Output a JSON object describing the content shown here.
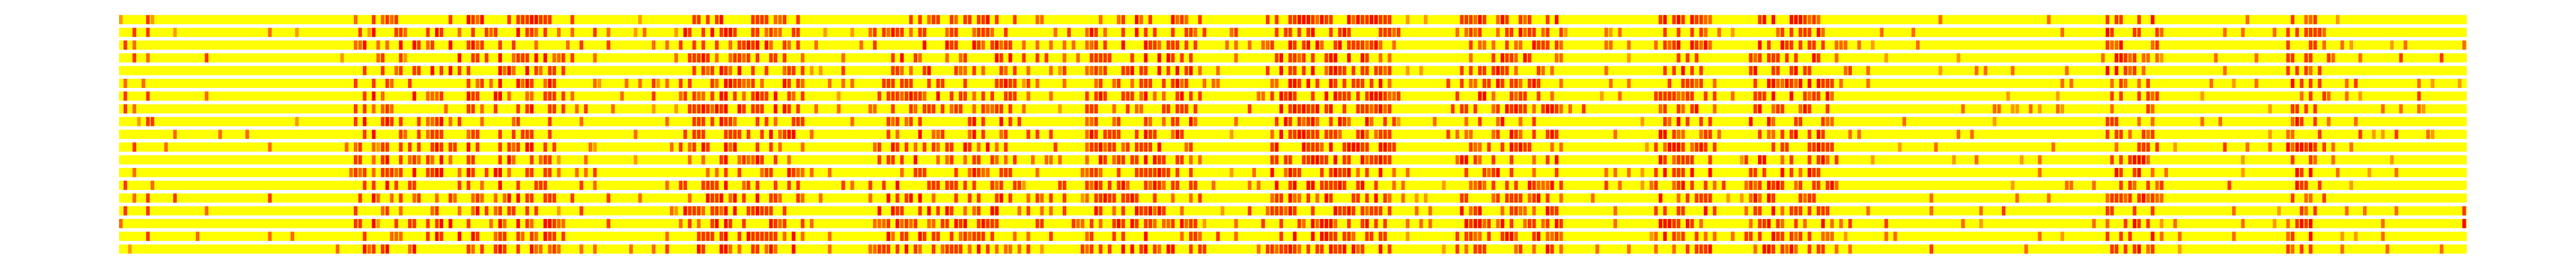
{
  "chart_data": {
    "type": "heatmap",
    "title": "",
    "xlabel": "",
    "ylabel": "",
    "axes_visible": false,
    "legend": "none",
    "grid": false,
    "row_count": 19,
    "column_count": 520,
    "value_range": [
      0,
      1
    ],
    "colormap": {
      "name": "autumn_r",
      "low": "#ffff00",
      "high": "#ff0000",
      "stops": [
        "#ffff00",
        "#ffcc00",
        "#ff9900",
        "#ff6600",
        "#ff3300",
        "#ff0000"
      ]
    },
    "background_color": "#ffffff",
    "row_gap_color": "#ffffff",
    "column_profile": [
      0.05,
      0.4,
      0.05,
      0.3,
      0.05,
      0.02,
      0.35,
      0.1,
      0.02,
      0.02,
      0.03,
      0.02,
      0.25,
      0.02,
      0.02,
      0.03,
      0.02,
      0.02,
      0.02,
      0.3,
      0.02,
      0.02,
      0.02,
      0.02,
      0.02,
      0.02,
      0.02,
      0.03,
      0.02,
      0.02,
      0.02,
      0.02,
      0.02,
      0.3,
      0.02,
      0.02,
      0.02,
      0.02,
      0.02,
      0.02,
      0.02,
      0.02,
      0.02,
      0.02,
      0.02,
      0.02,
      0.02,
      0.02,
      0.02,
      0.02,
      0.02,
      0.02,
      0.55,
      0.45,
      0.6,
      0.2,
      0.5,
      0.15,
      0.45,
      0.55,
      0.25,
      0.5,
      0.55,
      0.1,
      0.45,
      0.6,
      0.55,
      0.05,
      0.45,
      0.5,
      0.55,
      0.6,
      0.05,
      0.5,
      0.25,
      0.6,
      0.1,
      0.65,
      0.55,
      0.5,
      0.45,
      0.4,
      0.25,
      0.55,
      0.7,
      0.3,
      0.6,
      0.5,
      0.65,
      0.45,
      0.55,
      0.6,
      0.5,
      0.35,
      0.55,
      0.6,
      0.45,
      0.2,
      0.45,
      0.15,
      0.3,
      0.1,
      0.25,
      0.2,
      0.1,
      0.25,
      0.15,
      0.05,
      0.2,
      0.05,
      0.15,
      0.1,
      0.05,
      0.15,
      0.1,
      0.15,
      0.25,
      0.05,
      0.2,
      0.1,
      0.05,
      0.15,
      0.1,
      0.2,
      0.3,
      0.55,
      0.6,
      0.5,
      0.55,
      0.65,
      0.55,
      0.6,
      0.55,
      0.65,
      0.7,
      0.55,
      0.6,
      0.55,
      0.45,
      0.6,
      0.55,
      0.65,
      0.5,
      0.6,
      0.55,
      0.5,
      0.45,
      0.55,
      0.6,
      0.5,
      0.45,
      0.35,
      0.1,
      0.15,
      0.05,
      0.1,
      0.05,
      0.1,
      0.05,
      0.05,
      0.1,
      0.05,
      0.15,
      0.05,
      0.1,
      0.05,
      0.2,
      0.5,
      0.55,
      0.45,
      0.5,
      0.55,
      0.6,
      0.5,
      0.45,
      0.55,
      0.5,
      0.55,
      0.6,
      0.55,
      0.5,
      0.55,
      0.45,
      0.6,
      0.55,
      0.5,
      0.4,
      0.55,
      0.5,
      0.45,
      0.55,
      0.5,
      0.45,
      0.5,
      0.55,
      0.5,
      0.45,
      0.5,
      0.4,
      0.3,
      0.2,
      0.3,
      0.15,
      0.35,
      0.25,
      0.1,
      0.3,
      0.25,
      0.2,
      0.35,
      0.3,
      0.2,
      0.1,
      0.25,
      0.4,
      0.5,
      0.55,
      0.5,
      0.55,
      0.45,
      0.5,
      0.55,
      0.6,
      0.5,
      0.55,
      0.6,
      0.55,
      0.65,
      0.5,
      0.55,
      0.6,
      0.55,
      0.5,
      0.55,
      0.6,
      0.55,
      0.5,
      0.55,
      0.45,
      0.35,
      0.2,
      0.1,
      0.05,
      0.1,
      0.05,
      0.15,
      0.05,
      0.2,
      0.1,
      0.05,
      0.25,
      0.05,
      0.1,
      0.3,
      0.2,
      0.45,
      0.55,
      0.6,
      0.55,
      0.65,
      0.6,
      0.55,
      0.65,
      0.6,
      0.7,
      0.6,
      0.55,
      0.65,
      0.7,
      0.6,
      0.55,
      0.6,
      0.65,
      0.55,
      0.6,
      0.7,
      0.6,
      0.55,
      0.6,
      0.65,
      0.6,
      0.5,
      0.4,
      0.25,
      0.15,
      0.1,
      0.05,
      0.1,
      0.15,
      0.05,
      0.1,
      0.15,
      0.05,
      0.1,
      0.2,
      0.15,
      0.3,
      0.5,
      0.55,
      0.45,
      0.5,
      0.55,
      0.5,
      0.45,
      0.55,
      0.6,
      0.5,
      0.55,
      0.6,
      0.5,
      0.55,
      0.45,
      0.5,
      0.55,
      0.5,
      0.45,
      0.55,
      0.5,
      0.45,
      0.35,
      0.1,
      0.05,
      0.05,
      0.05,
      0.1,
      0.05,
      0.05,
      0.05,
      0.05,
      0.1,
      0.05,
      0.05,
      0.05,
      0.05,
      0.15,
      0.05,
      0.05,
      0.1,
      0.05,
      0.05,
      0.45,
      0.55,
      0.6,
      0.55,
      0.5,
      0.55,
      0.6,
      0.5,
      0.55,
      0.45,
      0.5,
      0.55,
      0.45,
      0.2,
      0.15,
      0.1,
      0.05,
      0.1,
      0.15,
      0.05,
      0.25,
      0.5,
      0.55,
      0.6,
      0.55,
      0.65,
      0.6,
      0.55,
      0.5,
      0.6,
      0.65,
      0.55,
      0.6,
      0.55,
      0.5,
      0.55,
      0.6,
      0.55,
      0.5,
      0.45,
      0.3,
      0.2,
      0.1,
      0.15,
      0.05,
      0.1,
      0.05,
      0.15,
      0.1,
      0.05,
      0.05,
      0.1,
      0.05,
      0.05,
      0.1,
      0.05,
      0.05,
      0.05,
      0.1,
      0.05,
      0.05,
      0.1,
      0.05,
      0.05,
      0.05,
      0.1,
      0.05,
      0.05,
      0.05,
      0.05,
      0.1,
      0.05,
      0.05,
      0.05,
      0.05,
      0.05,
      0.1,
      0.05,
      0.05,
      0.05,
      0.05,
      0.1,
      0.05,
      0.05,
      0.05,
      0.1,
      0.05,
      0.05,
      0.05,
      0.05,
      0.1,
      0.05,
      0.05,
      0.05,
      0.05,
      0.1,
      0.05,
      0.05,
      0.05,
      0.05,
      0.45,
      0.5,
      0.55,
      0.6,
      0.55,
      0.5,
      0.55,
      0.6,
      0.5,
      0.45,
      0.5,
      0.4,
      0.2,
      0.1,
      0.05,
      0.1,
      0.05,
      0.1,
      0.05,
      0.1,
      0.05,
      0.1,
      0.05,
      0.05,
      0.1,
      0.05,
      0.05,
      0.1,
      0.05,
      0.05,
      0.1,
      0.05,
      0.05,
      0.1,
      0.05,
      0.05,
      0.1,
      0.05,
      0.05,
      0.05,
      0.5,
      0.55,
      0.6,
      0.55,
      0.5,
      0.55,
      0.5,
      0.45,
      0.4,
      0.3,
      0.2,
      0.1,
      0.05,
      0.1,
      0.05,
      0.1,
      0.05,
      0.1,
      0.05,
      0.05,
      0.05,
      0.1,
      0.05,
      0.05,
      0.1,
      0.05,
      0.05,
      0.05,
      0.05,
      0.1,
      0.05,
      0.05,
      0.05,
      0.05,
      0.1,
      0.05,
      0.05,
      0.05,
      0.05,
      0.1
    ],
    "outliers": [
      {
        "row": 16,
        "column": 519,
        "value": 1.0
      }
    ]
  }
}
